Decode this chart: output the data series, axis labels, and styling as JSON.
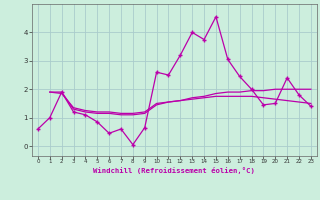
{
  "xlabel": "Windchill (Refroidissement éolien,°C)",
  "ylabel": "",
  "background_color": "#cceedd",
  "grid_color": "#aacccc",
  "line_color": "#bb00aa",
  "xlim": [
    -0.5,
    23.5
  ],
  "ylim": [
    -0.35,
    5.0
  ],
  "yticks": [
    0,
    1,
    2,
    3,
    4
  ],
  "xticks": [
    0,
    1,
    2,
    3,
    4,
    5,
    6,
    7,
    8,
    9,
    10,
    11,
    12,
    13,
    14,
    15,
    16,
    17,
    18,
    19,
    20,
    21,
    22,
    23
  ],
  "series": {
    "line1": {
      "x": [
        0,
        1,
        2,
        3,
        4,
        5,
        6,
        7,
        8,
        9,
        10,
        11,
        12,
        13,
        14,
        15,
        16,
        17,
        18,
        19,
        20,
        21,
        22,
        23
      ],
      "y": [
        0.6,
        1.0,
        1.9,
        1.2,
        1.1,
        0.85,
        0.45,
        0.6,
        0.05,
        0.65,
        2.6,
        2.5,
        3.2,
        4.0,
        3.75,
        4.55,
        3.05,
        2.45,
        2.0,
        1.45,
        1.5,
        2.4,
        1.8,
        1.4
      ]
    },
    "line2": {
      "x": [
        1,
        2,
        3,
        4,
        5,
        6,
        7,
        8,
        9,
        10,
        11,
        12,
        13,
        14,
        15,
        16,
        17,
        18,
        19,
        20,
        21,
        22,
        23
      ],
      "y": [
        1.9,
        1.9,
        1.3,
        1.2,
        1.15,
        1.15,
        1.1,
        1.1,
        1.15,
        1.45,
        1.55,
        1.6,
        1.7,
        1.75,
        1.85,
        1.9,
        1.9,
        1.95,
        1.95,
        2.0,
        2.0,
        2.0,
        2.0
      ]
    },
    "line3": {
      "x": [
        1,
        2,
        3,
        4,
        5,
        6,
        7,
        8,
        9,
        10,
        11,
        12,
        13,
        14,
        15,
        16,
        17,
        18,
        19,
        20,
        21,
        22,
        23
      ],
      "y": [
        1.9,
        1.85,
        1.35,
        1.25,
        1.2,
        1.2,
        1.15,
        1.15,
        1.2,
        1.5,
        1.55,
        1.6,
        1.65,
        1.7,
        1.75,
        1.75,
        1.75,
        1.75,
        1.7,
        1.65,
        1.6,
        1.55,
        1.5
      ]
    }
  }
}
